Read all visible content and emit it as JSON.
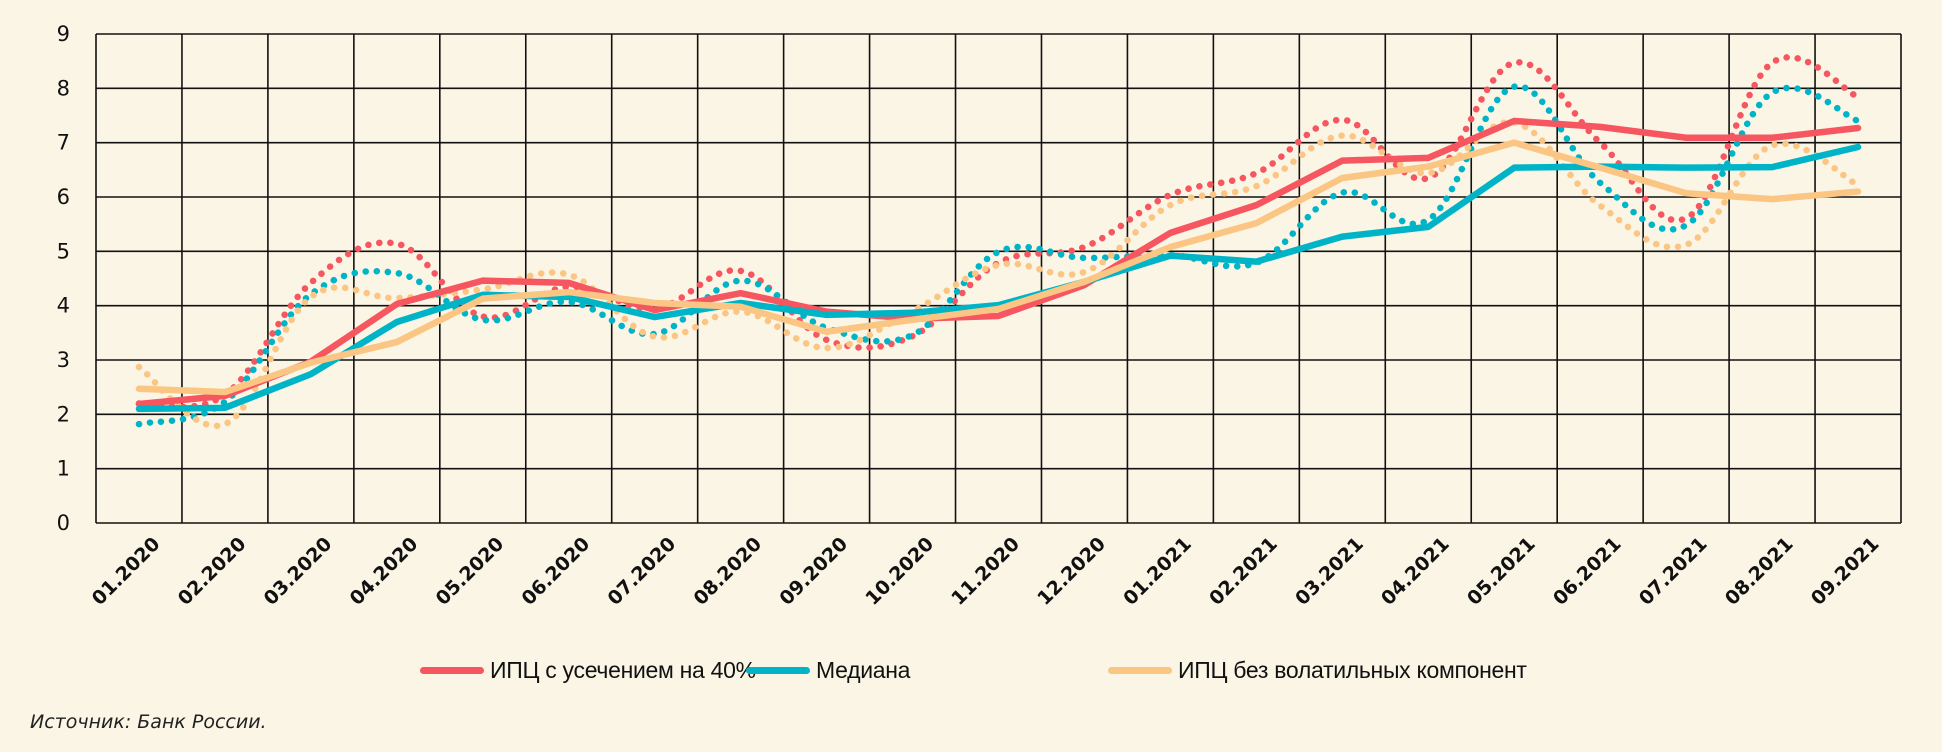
{
  "chart_data": {
    "type": "line",
    "title": "",
    "xlabel": "",
    "ylabel": "",
    "ylim": [
      0,
      9
    ],
    "yticks": [
      "0",
      "1",
      "2",
      "3",
      "4",
      "5",
      "6",
      "7",
      "8",
      "9"
    ],
    "grid": true,
    "legend_position": "bottom",
    "categories": [
      "01.2020",
      "02.2020",
      "03.2020",
      "04.2020",
      "05.2020",
      "06.2020",
      "07.2020",
      "08.2020",
      "09.2020",
      "10.2020",
      "11.2020",
      "12.2020",
      "01.2021",
      "02.2021",
      "03.2021",
      "04.2021",
      "05.2021",
      "06.2021",
      "07.2021",
      "08.2021",
      "09.2021"
    ],
    "series": [
      {
        "name": "ИПЦ с усечением на 40%",
        "color": "#F65660",
        "style": "solid",
        "values": [
          2.19,
          2.34,
          2.97,
          4.03,
          4.46,
          4.42,
          3.92,
          4.23,
          3.89,
          3.76,
          3.81,
          4.38,
          5.34,
          5.85,
          6.67,
          6.72,
          7.4,
          7.29,
          7.09,
          7.09,
          7.27
        ]
      },
      {
        "name": "Медиана",
        "color": "#00B4C8",
        "style": "solid",
        "values": [
          2.1,
          2.12,
          2.74,
          3.7,
          4.2,
          4.16,
          3.79,
          4.05,
          3.83,
          3.87,
          4.01,
          4.44,
          4.92,
          4.81,
          5.27,
          5.45,
          6.54,
          6.56,
          6.54,
          6.55,
          6.92
        ]
      },
      {
        "name": "ИПЦ без волатильных компонент",
        "color": "#FBC583",
        "style": "solid",
        "values": [
          2.47,
          2.41,
          2.95,
          3.33,
          4.13,
          4.25,
          4.05,
          3.98,
          3.52,
          3.74,
          3.94,
          4.44,
          5.08,
          5.52,
          6.35,
          6.56,
          7.0,
          6.54,
          6.07,
          5.96,
          6.1
        ]
      },
      {
        "name": "ИПЦ с усечением на 40% (пунктир)",
        "color": "#F65660",
        "style": "dotted",
        "values": [
          2.2,
          2.36,
          4.42,
          5.14,
          3.8,
          4.35,
          3.95,
          4.64,
          3.37,
          3.44,
          4.79,
          5.08,
          6.04,
          6.44,
          7.42,
          6.35,
          8.47,
          7.0,
          5.61,
          8.47,
          7.84
        ]
      },
      {
        "name": "Медиана (пунктир)",
        "color": "#00B4C8",
        "style": "dotted",
        "values": [
          1.82,
          2.23,
          4.21,
          4.6,
          3.74,
          4.07,
          3.48,
          4.46,
          3.59,
          3.46,
          4.99,
          4.88,
          4.93,
          4.79,
          6.08,
          5.58,
          8.03,
          6.26,
          5.48,
          7.92,
          7.4
        ]
      },
      {
        "name": "ИПЦ без волатильных компонент (пунктир)",
        "color": "#FBC583",
        "style": "dotted",
        "values": [
          2.87,
          1.82,
          4.16,
          4.14,
          4.3,
          4.57,
          3.43,
          3.89,
          3.22,
          3.9,
          4.75,
          4.62,
          5.85,
          6.2,
          7.13,
          6.44,
          7.37,
          5.84,
          5.12,
          6.95,
          6.22
        ]
      }
    ]
  },
  "legend": {
    "items": [
      {
        "label": "ИПЦ с усечением на 40%",
        "color": "#F65660"
      },
      {
        "label": "Медиана",
        "color": "#00B4C8"
      },
      {
        "label": "ИПЦ без волатильных компонент",
        "color": "#FBC583"
      }
    ]
  },
  "source": "Источник:  Банк России."
}
